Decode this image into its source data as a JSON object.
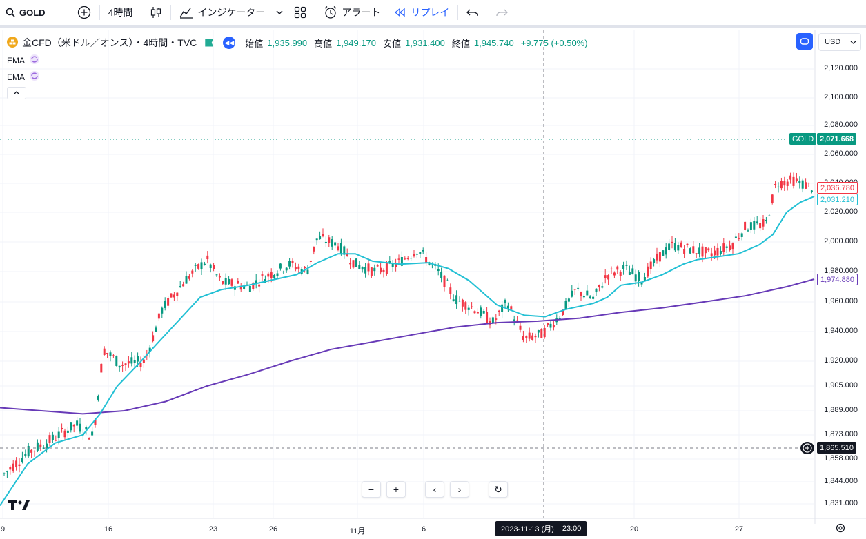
{
  "toolbar": {
    "symbol": "GOLD",
    "interval": "4時間",
    "indicators_label": "インジケーター",
    "alert_label": "アラート",
    "replay_label": "リプレイ"
  },
  "legend": {
    "title": "金CFD（米ドル／オンス）・4時間・TVC",
    "open_label": "始値",
    "open": "1,935.990",
    "high_label": "高値",
    "high": "1,949.170",
    "low_label": "安値",
    "low": "1,931.400",
    "close_label": "終値",
    "close": "1,945.740",
    "change": "+9.775 (+0.50%)",
    "indicators": [
      {
        "name": "EMA"
      },
      {
        "name": "EMA"
      }
    ]
  },
  "currency": "USD",
  "price_scale": [
    "2,120.000",
    "2,100.000",
    "2,080.000",
    "2,060.000",
    "2,040.000",
    "2,020.000",
    "2,000.000",
    "1,980.000",
    "1,960.000",
    "1,940.000",
    "1,920.000",
    "1,905.000",
    "1,889.000",
    "1,873.000",
    "1,858.000",
    "1,844.000",
    "1,831.000"
  ],
  "tags": {
    "gold_label": "GOLD",
    "gold_value": "2,071.668",
    "last_price": "2,036.780",
    "ema_fast": "2,031.210",
    "ema_slow": "1,974.880",
    "crosshair_price": "1,865.510"
  },
  "time_scale": [
    "9",
    "16",
    "23",
    "26",
    "11月",
    "6",
    "20",
    "27"
  ],
  "crosshair_time": {
    "date": "2023-11-13 (月)",
    "time": "23:00"
  },
  "colors": {
    "up": "#089981",
    "down": "#f23645",
    "ema_fast": "#22c0d4",
    "ema_slow": "#673ab7",
    "accent": "#2962ff"
  },
  "chart_data": {
    "type": "candlestick",
    "ema_fast_points": [
      [
        0,
        1830
      ],
      [
        40,
        1855
      ],
      [
        80,
        1868
      ],
      [
        120,
        1873
      ],
      [
        145,
        1887
      ],
      [
        170,
        1905
      ],
      [
        200,
        1918
      ],
      [
        230,
        1933
      ],
      [
        260,
        1948
      ],
      [
        290,
        1963
      ],
      [
        320,
        1968
      ],
      [
        360,
        1971
      ],
      [
        400,
        1975
      ],
      [
        430,
        1978
      ],
      [
        460,
        1986
      ],
      [
        490,
        1992
      ],
      [
        515,
        1992
      ],
      [
        540,
        1987
      ],
      [
        580,
        1985
      ],
      [
        620,
        1986
      ],
      [
        650,
        1982
      ],
      [
        680,
        1974
      ],
      [
        700,
        1966
      ],
      [
        720,
        1958
      ],
      [
        760,
        1951
      ],
      [
        790,
        1950
      ],
      [
        820,
        1955
      ],
      [
        860,
        1959
      ],
      [
        880,
        1963
      ],
      [
        900,
        1971
      ],
      [
        930,
        1973
      ],
      [
        960,
        1978
      ],
      [
        990,
        1985
      ],
      [
        1010,
        1988
      ],
      [
        1040,
        1990
      ],
      [
        1070,
        1992
      ],
      [
        1100,
        1998
      ],
      [
        1120,
        2005
      ],
      [
        1140,
        2020
      ],
      [
        1160,
        2027
      ],
      [
        1180,
        2031
      ]
    ],
    "ema_slow_points": [
      [
        0,
        1891
      ],
      [
        60,
        1889
      ],
      [
        120,
        1887
      ],
      [
        180,
        1889
      ],
      [
        240,
        1895
      ],
      [
        300,
        1905
      ],
      [
        360,
        1912
      ],
      [
        420,
        1920
      ],
      [
        480,
        1928
      ],
      [
        540,
        1933
      ],
      [
        600,
        1938
      ],
      [
        660,
        1943
      ],
      [
        720,
        1946
      ],
      [
        780,
        1947
      ],
      [
        840,
        1949
      ],
      [
        900,
        1953
      ],
      [
        960,
        1956
      ],
      [
        1020,
        1960
      ],
      [
        1080,
        1964
      ],
      [
        1140,
        1970
      ],
      [
        1180,
        1975
      ]
    ]
  }
}
